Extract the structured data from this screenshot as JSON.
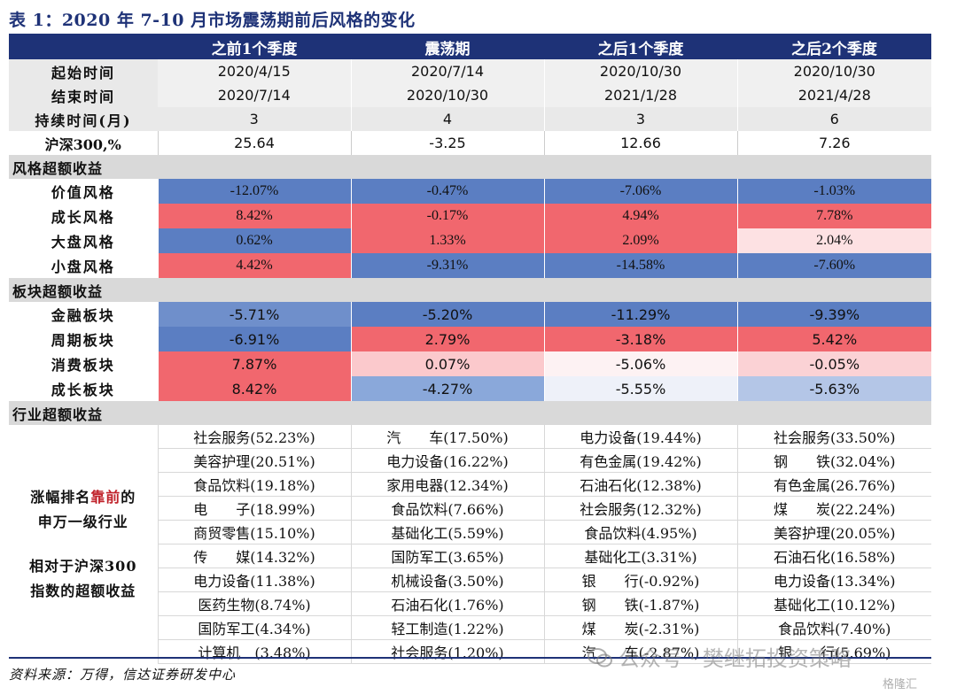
{
  "title": "表 1：2020 年 7-10 月市场震荡期前后风格的变化",
  "header": [
    "之前1个季度",
    "震荡期",
    "之后1个季度",
    "之后2个季度"
  ],
  "rows_top": [
    {
      "label": "起始时间",
      "values": [
        "2020/4/15",
        "2020/7/14",
        "2020/10/30",
        "2020/10/30"
      ]
    },
    {
      "label": "结束时间",
      "values": [
        "2020/7/14",
        "2020/10/30",
        "2021/1/28",
        "2021/4/28"
      ]
    },
    {
      "label": "持续时间(月)",
      "values": [
        "3",
        "4",
        "3",
        "6"
      ]
    },
    {
      "label": "沪深300,%",
      "values": [
        "25.64",
        "-3.25",
        "12.66",
        "7.26"
      ]
    }
  ],
  "section_style": "风格超额收益",
  "style_rows": [
    {
      "label": "价值风格",
      "values": [
        "-12.07%",
        "-0.47%",
        "-7.06%",
        "-1.03%"
      ],
      "colors": [
        "#5b7ec2",
        "#5b7ec2",
        "#5b7ec2",
        "#5b7ec2"
      ]
    },
    {
      "label": "成长风格",
      "values": [
        "8.42%",
        "-0.17%",
        "4.94%",
        "7.78%"
      ],
      "colors": [
        "#f1676e",
        "#f1676e",
        "#f1676e",
        "#f1676e"
      ]
    },
    {
      "label": "大盘风格",
      "values": [
        "0.62%",
        "1.33%",
        "2.09%",
        "2.04%"
      ],
      "colors": [
        "#5b7ec2",
        "#f1676e",
        "#f1676e",
        "#fde1e3"
      ]
    },
    {
      "label": "小盘风格",
      "values": [
        "4.42%",
        "-9.31%",
        "-14.58%",
        "-7.60%"
      ],
      "colors": [
        "#f1676e",
        "#5b7ec2",
        "#5b7ec2",
        "#5b7ec2"
      ]
    }
  ],
  "section_sector": "板块超额收益",
  "sector_rows": [
    {
      "label": "金融板块",
      "values": [
        "-5.71%",
        "-5.20%",
        "-11.29%",
        "-9.39%"
      ],
      "colors": [
        "#6f8fcb",
        "#5b7ec2",
        "#5b7ec2",
        "#5b7ec2"
      ]
    },
    {
      "label": "周期板块",
      "values": [
        "-6.91%",
        "2.79%",
        "-3.18%",
        "5.42%"
      ],
      "colors": [
        "#5b7ec2",
        "#f1676e",
        "#f1676e",
        "#f1676e"
      ]
    },
    {
      "label": "消费板块",
      "values": [
        "7.87%",
        "0.07%",
        "-5.06%",
        "-0.05%"
      ],
      "colors": [
        "#f1676e",
        "#fbc9cc",
        "#fdf2f3",
        "#fbd2d5"
      ]
    },
    {
      "label": "成长板块",
      "values": [
        "8.42%",
        "-4.27%",
        "-5.55%",
        "-5.63%"
      ],
      "colors": [
        "#f1676e",
        "#8aa8da",
        "#eef1f9",
        "#b4c6e7"
      ]
    }
  ],
  "section_industry": "行业超额收益",
  "industry_label": {
    "line1_prefix": "涨幅排名",
    "line1_highlight": "靠前",
    "line1_suffix": "的",
    "line2": "申万一级行业",
    "line3": "相对于沪深300",
    "line4": "指数的超额收益"
  },
  "industry": [
    [
      "社会服务(52.23%)",
      "汽　　车(17.50%)",
      "电力设备(19.44%)",
      "社会服务(33.50%)"
    ],
    [
      "美容护理(20.51%)",
      "电力设备(16.22%)",
      "有色金属(19.42%)",
      "钢　　铁(32.04%)"
    ],
    [
      "食品饮料(19.18%)",
      "家用电器(12.34%)",
      "石油石化(12.38%)",
      "有色金属(26.76%)"
    ],
    [
      "电　　子(18.99%)",
      "食品饮料(7.66%)",
      "社会服务(12.32%)",
      "煤　　炭(22.24%)"
    ],
    [
      "商贸零售(15.10%)",
      "基础化工(5.59%)",
      "食品饮料(4.95%)",
      "美容护理(20.05%)"
    ],
    [
      "传　　媒(14.32%)",
      "国防军工(3.65%)",
      "基础化工(3.31%)",
      "石油石化(16.58%)"
    ],
    [
      "电力设备(11.38%)",
      "机械设备(3.50%)",
      "银　　行(-0.92%)",
      "电力设备(13.34%)"
    ],
    [
      "医药生物(8.74%)",
      "石油石化(1.76%)",
      "钢　　铁(-1.87%)",
      "基础化工(10.12%)"
    ],
    [
      "国防军工(4.34%)",
      "轻工制造(1.22%)",
      "煤　　炭(-2.31%)",
      "食品饮料(7.40%)"
    ],
    [
      "计算机　(3.48%)",
      "社会服务(1.20%)",
      "汽　　车(-2.87%)",
      "银　　行(5.69%)"
    ]
  ],
  "source": "资料来源：万得，信达证券研发中心",
  "watermark": "公众号 · 樊继拓投资策略",
  "watermark2": "格隆汇"
}
